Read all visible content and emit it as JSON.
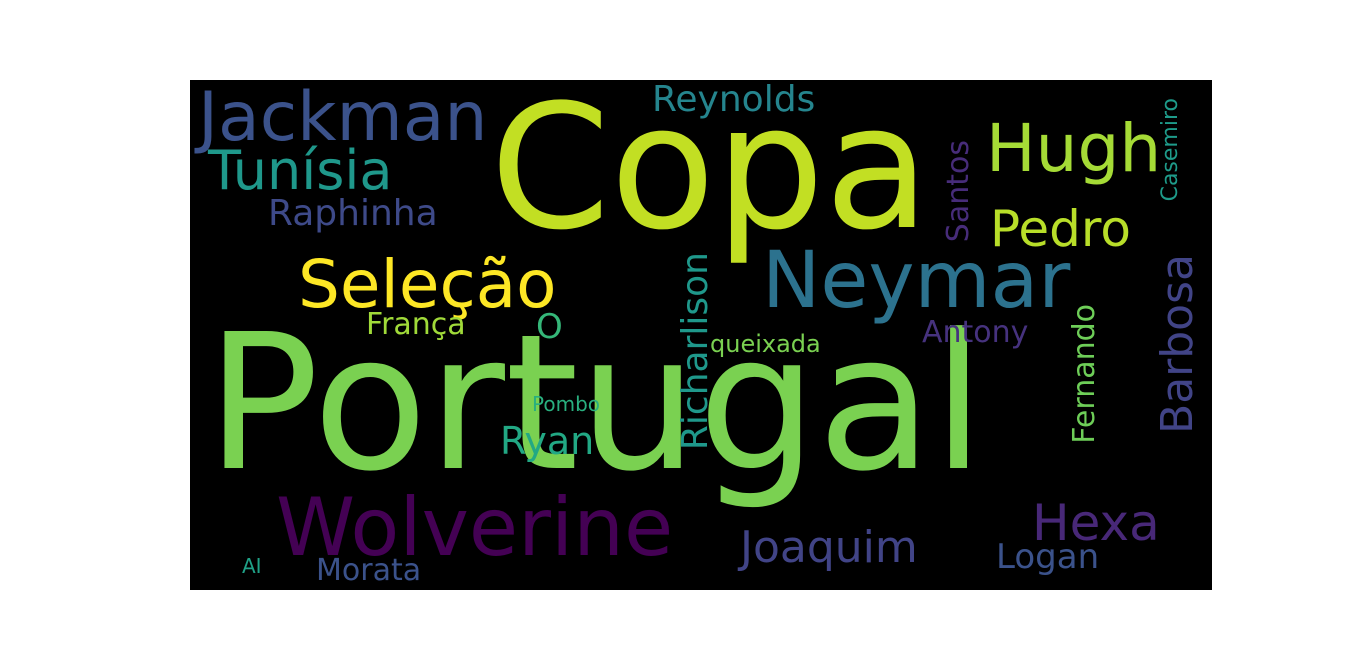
{
  "wordcloud": {
    "background_color": "#000000",
    "words": {
      "portugal": "Portugal",
      "copa": "Copa",
      "neymar": "Neymar",
      "wolverine": "Wolverine",
      "jackman": "Jackman",
      "selecao": "Seleção",
      "hugh": "Hugh",
      "tunisia": "Tunísia",
      "pedro": "Pedro",
      "hexa": "Hexa",
      "joaquim": "Joaquim",
      "raphinha": "Raphinha",
      "reynolds": "Reynolds",
      "ryan": "Ryan",
      "logan": "Logan",
      "franca": "França",
      "o": "O",
      "antony": "Antony",
      "morata": "Morata",
      "queixada": "queixada",
      "pombo": "Pombo",
      "ai": "AI",
      "richarlison": "Richarlison",
      "barbosa": "Barbosa",
      "fernando": "Fernando",
      "santos": "Santos",
      "casemiro": "Casemiro"
    }
  }
}
